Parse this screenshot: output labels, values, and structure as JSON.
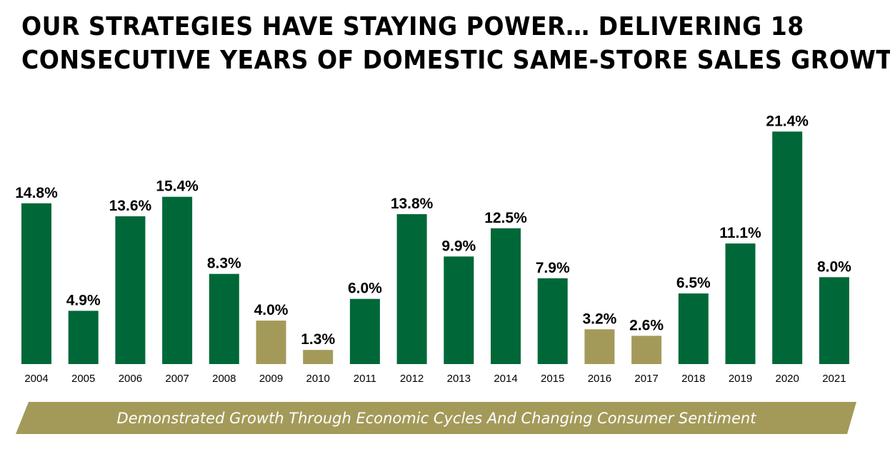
{
  "title_line1": "OUR STRATEGIES HAVE STAYING POWER… DELIVERING 18",
  "title_line2": "CONSECUTIVE YEARS OF DOMESTIC SAME-STORE SALES GROWTH",
  "banner_text": "Demonstrated Growth Through Economic Cycles And Changing Consumer Sentiment",
  "colors": {
    "green": "#006838",
    "olive": "#a39a5a",
    "banner": "#a39a5a"
  },
  "chart_data": {
    "type": "bar",
    "title": "",
    "xlabel": "",
    "ylabel": "",
    "ylim": [
      0,
      23
    ],
    "categories": [
      "2004",
      "2005",
      "2006",
      "2007",
      "2008",
      "2009",
      "2010",
      "2011",
      "2012",
      "2013",
      "2014",
      "2015",
      "2016",
      "2017",
      "2018",
      "2019",
      "2020",
      "2021"
    ],
    "values": [
      14.8,
      4.9,
      13.6,
      15.4,
      8.3,
      4.0,
      1.3,
      6.0,
      13.8,
      9.9,
      12.5,
      7.9,
      3.2,
      2.6,
      6.5,
      11.1,
      21.4,
      8.0
    ],
    "labels": [
      "14.8%",
      "4.9%",
      "13.6%",
      "15.4%",
      "8.3%",
      "4.0%",
      "1.3%",
      "6.0%",
      "13.8%",
      "9.9%",
      "12.5%",
      "7.9%",
      "3.2%",
      "2.6%",
      "6.5%",
      "11.1%",
      "21.4%",
      "8.0%"
    ],
    "bar_colors": [
      "green",
      "green",
      "green",
      "green",
      "green",
      "olive",
      "olive",
      "green",
      "green",
      "green",
      "green",
      "green",
      "olive",
      "olive",
      "green",
      "green",
      "green",
      "green"
    ]
  }
}
